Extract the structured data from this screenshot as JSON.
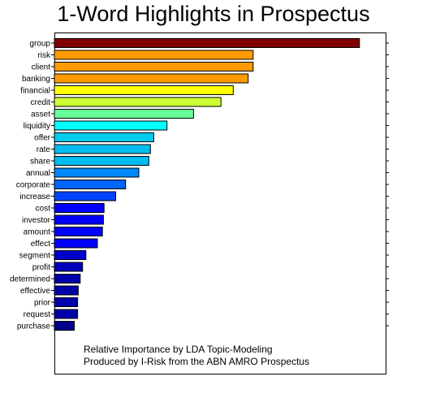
{
  "chart_data": {
    "type": "bar",
    "orientation": "horizontal",
    "title": "1-Word Highlights in Prospectus",
    "xlabel": "",
    "ylabel": "",
    "xlim": [
      0,
      1.0
    ],
    "grid": false,
    "legend": "none",
    "categories": [
      "group",
      "risk",
      "client",
      "banking",
      "financial",
      "credit",
      "asset",
      "liquidity",
      "offer",
      "rate",
      "share",
      "annual",
      "corporate",
      "increase",
      "cost",
      "investor",
      "amount",
      "effect",
      "segment",
      "profit",
      "determined",
      "effective",
      "prior",
      "request",
      "purchase"
    ],
    "values": [
      0.921,
      0.6,
      0.6,
      0.585,
      0.54,
      0.503,
      0.42,
      0.34,
      0.3,
      0.29,
      0.285,
      0.255,
      0.215,
      0.185,
      0.15,
      0.148,
      0.145,
      0.13,
      0.095,
      0.085,
      0.078,
      0.072,
      0.07,
      0.07,
      0.06
    ],
    "colors": [
      "#800000",
      "#ff9a00",
      "#ff9a00",
      "#ff9a00",
      "#ffff00",
      "#ccff33",
      "#66ff99",
      "#00ffff",
      "#00ccee",
      "#00bbee",
      "#00bbee",
      "#0088ff",
      "#0066ff",
      "#0044ff",
      "#0000ff",
      "#0000ff",
      "#0000ff",
      "#0000ff",
      "#0000cc",
      "#0000bb",
      "#0000aa",
      "#0000aa",
      "#0000aa",
      "#0000aa",
      "#00008b"
    ],
    "annotations": [
      "Relative Importance by LDA Topic-Modeling",
      "Produced by I-Risk from the ABN AMRO Prospectus"
    ]
  }
}
